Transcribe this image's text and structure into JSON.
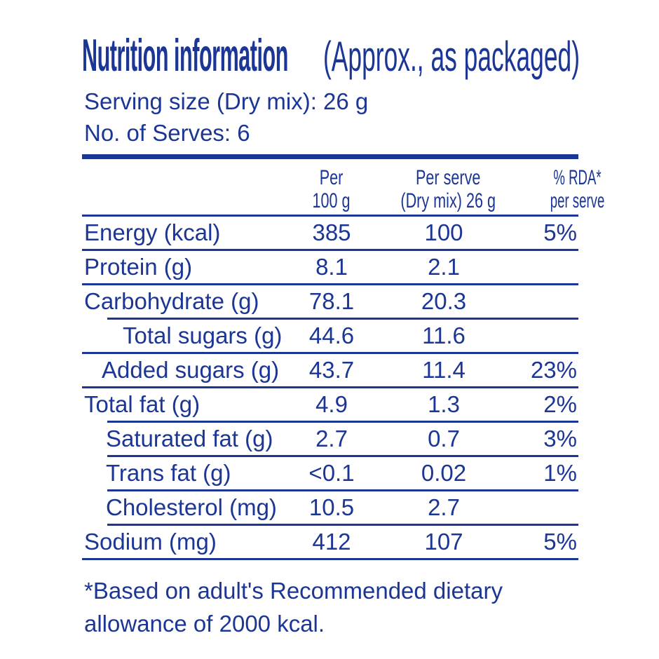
{
  "colors": {
    "accent": "#1b3695",
    "background": "#ffffff"
  },
  "header": {
    "title_bold": "Nutrition information",
    "title_qualifier": "(Approx., as packaged)",
    "serving_size": "Serving size (Dry mix): 26 g",
    "serves": "No. of Serves: 6"
  },
  "table": {
    "header": {
      "per_100g": [
        "Per",
        "100 g"
      ],
      "per_serve": [
        "Per serve",
        "(Dry mix) 26 g"
      ],
      "rda": [
        "% RDA*",
        "per serve"
      ]
    },
    "rows": [
      {
        "label": "Energy (kcal)",
        "per_100g": "385",
        "per_serve": "100",
        "rda": "5%"
      },
      {
        "label": "Protein (g)",
        "per_100g": "8.1",
        "per_serve": "2.1",
        "rda": ""
      },
      {
        "label": "Carbohydrate (g)",
        "per_100g": "78.1",
        "per_serve": "20.3",
        "rda": ""
      },
      {
        "label": "Total sugars (g)",
        "per_100g": "44.6",
        "per_serve": "11.6",
        "rda": ""
      },
      {
        "label": "Added sugars (g)",
        "per_100g": "43.7",
        "per_serve": "11.4",
        "rda": "23%"
      },
      {
        "label": "Total fat (g)",
        "per_100g": "4.9",
        "per_serve": "1.3",
        "rda": "2%"
      },
      {
        "label": "Saturated fat (g)",
        "per_100g": "2.7",
        "per_serve": "0.7",
        "rda": "3%"
      },
      {
        "label": "Trans fat (g)",
        "per_100g": "<0.1",
        "per_serve": "0.02",
        "rda": "1%"
      },
      {
        "label": "Cholesterol (mg)",
        "per_100g": "10.5",
        "per_serve": "2.7",
        "rda": ""
      },
      {
        "label": "Sodium (mg)",
        "per_100g": "412",
        "per_serve": "107",
        "rda": "5%"
      }
    ]
  },
  "footnote": [
    "*Based on adult's Recommended dietary",
    "allowance of 2000 kcal."
  ]
}
